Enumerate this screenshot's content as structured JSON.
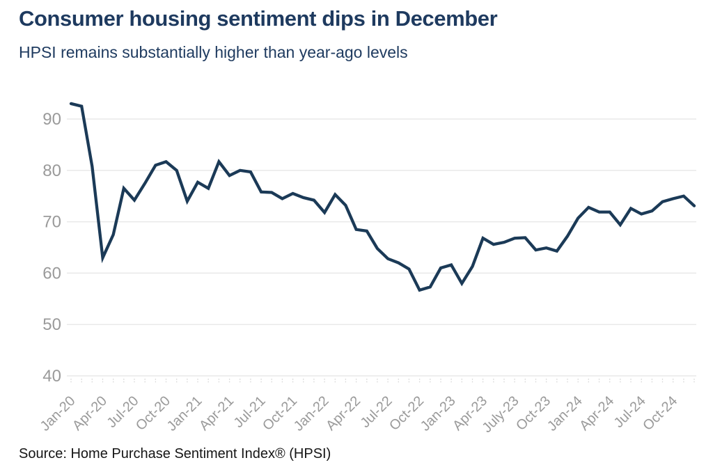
{
  "chart_data": {
    "type": "line",
    "title": "Consumer housing sentiment dips in December",
    "subtitle": "HPSI remains substantially higher than year-ago levels",
    "source_note": "Source: Home Purchase Sentiment Index® (HPSI)",
    "series_name": "HPSI",
    "x": [
      "Jan-20",
      "Feb-20",
      "Mar-20",
      "Apr-20",
      "May-20",
      "Jun-20",
      "Jul-20",
      "Aug-20",
      "Sep-20",
      "Oct-20",
      "Nov-20",
      "Dec-20",
      "Jan-21",
      "Feb-21",
      "Mar-21",
      "Apr-21",
      "May-21",
      "Jun-21",
      "Jul-21",
      "Aug-21",
      "Sep-21",
      "Oct-21",
      "Nov-21",
      "Dec-21",
      "Jan-22",
      "Feb-22",
      "Mar-22",
      "Apr-22",
      "May-22",
      "Jun-22",
      "Jul-22",
      "Aug-22",
      "Sep-22",
      "Oct-22",
      "Nov-22",
      "Dec-22",
      "Jan-23",
      "Feb-23",
      "Mar-23",
      "Apr-23",
      "May-23",
      "Jun-23",
      "Jul-23",
      "Aug-23",
      "Sep-23",
      "Oct-23",
      "Nov-23",
      "Dec-23",
      "Jan-24",
      "Feb-24",
      "Mar-24",
      "Apr-24",
      "May-24",
      "Jun-24",
      "Jul-24",
      "Aug-24",
      "Sep-24",
      "Oct-24",
      "Nov-24",
      "Dec-24"
    ],
    "values": [
      93.0,
      92.5,
      80.8,
      63.0,
      67.5,
      76.5,
      74.2,
      77.5,
      81.0,
      81.7,
      80.0,
      74.0,
      77.7,
      76.5,
      81.7,
      79.0,
      80.0,
      79.7,
      75.8,
      75.7,
      74.5,
      75.5,
      74.7,
      74.2,
      71.8,
      75.3,
      73.2,
      68.5,
      68.2,
      64.8,
      62.8,
      62.0,
      60.8,
      56.7,
      57.3,
      61.0,
      61.6,
      58.0,
      61.3,
      66.8,
      65.6,
      66.0,
      66.8,
      66.9,
      64.5,
      64.9,
      64.3,
      67.2,
      70.7,
      72.8,
      71.9,
      71.9,
      69.4,
      72.6,
      71.5,
      72.1,
      73.9,
      74.5,
      75.0,
      73.1
    ],
    "xtick_interval": 3,
    "xticks_shown": [
      "Jan-20",
      "Apr-20",
      "Jul-20",
      "Oct-20",
      "Jan-21",
      "Apr-21",
      "Jul-21",
      "Oct-21",
      "Jan-22",
      "Apr-22",
      "Jul-22",
      "Oct-22",
      "Jan-23",
      "Apr-23",
      "July-23",
      "Oct-23",
      "Jan-24",
      "Apr-24",
      "Jul-24",
      "Oct-24"
    ],
    "yticks": [
      40,
      50,
      60,
      70,
      80,
      90
    ],
    "ylim": [
      40,
      95
    ],
    "grid": "horizontal",
    "legend": "none",
    "line_color": "#1b3a57",
    "grid_color": "#e9e9e9",
    "tick_mark_color": "#d9d9d9",
    "axis_label_color": "#9a9a9a",
    "title_color": "#1e3a5f",
    "source_color": "#151515",
    "background": "#ffffff"
  }
}
